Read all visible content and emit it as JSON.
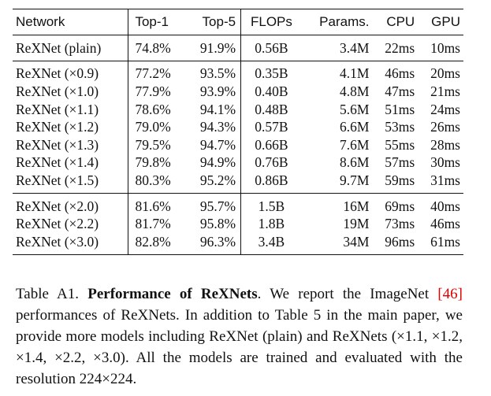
{
  "table": {
    "header": [
      "Network",
      "Top-1",
      "Top-5",
      "FLOPs",
      "Params.",
      "CPU",
      "GPU"
    ],
    "groups": [
      [
        [
          "ReXNet (plain)",
          "74.8%",
          "91.9%",
          "0.56B",
          "3.4M",
          "22ms",
          "10ms"
        ]
      ],
      [
        [
          "ReXNet (×0.9)",
          "77.2%",
          "93.5%",
          "0.35B",
          "4.1M",
          "46ms",
          "20ms"
        ],
        [
          "ReXNet (×1.0)",
          "77.9%",
          "93.9%",
          "0.40B",
          "4.8M",
          "47ms",
          "21ms"
        ],
        [
          "ReXNet (×1.1)",
          "78.6%",
          "94.1%",
          "0.48B",
          "5.6M",
          "51ms",
          "24ms"
        ],
        [
          "ReXNet (×1.2)",
          "79.0%",
          "94.3%",
          "0.57B",
          "6.6M",
          "53ms",
          "26ms"
        ],
        [
          "ReXNet (×1.3)",
          "79.5%",
          "94.7%",
          "0.66B",
          "7.6M",
          "55ms",
          "28ms"
        ],
        [
          "ReXNet (×1.4)",
          "79.8%",
          "94.9%",
          "0.76B",
          "8.6M",
          "57ms",
          "30ms"
        ],
        [
          "ReXNet (×1.5)",
          "80.3%",
          "95.2%",
          "0.86B",
          "9.7M",
          "59ms",
          "31ms"
        ]
      ],
      [
        [
          "ReXNet (×2.0)",
          "81.6%",
          "95.7%",
          "1.5B",
          "16M",
          "69ms",
          "40ms"
        ],
        [
          "ReXNet (×2.2)",
          "81.7%",
          "95.8%",
          "1.8B",
          "19M",
          "73ms",
          "46ms"
        ],
        [
          "ReXNet (×3.0)",
          "82.8%",
          "96.3%",
          "3.4B",
          "34M",
          "96ms",
          "61ms"
        ]
      ]
    ]
  },
  "caption": {
    "label": "Table A1.",
    "title": "Performance of ReXNets",
    "text1": ". We report the ImageNet ",
    "ref": "[46]",
    "text2": " performances of ReXNets. In addition to Table 5 in the main paper, we provide more models including ReXNet (plain) and ReXNets (×1.1, ×1.2, ×1.4, ×2.2, ×3.0). All the models are trained and evaluated with the resolution 224×224."
  }
}
